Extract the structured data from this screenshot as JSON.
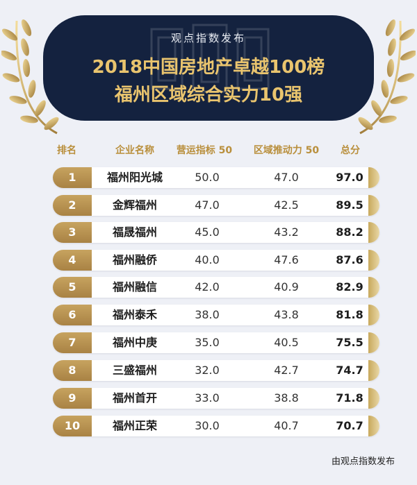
{
  "header": {
    "subtitle": "观点指数发布",
    "title_line1": "2018中国房地产卓越100榜",
    "title_line2": "福州区域综合实力10强"
  },
  "columns": {
    "rank": "排名",
    "name": "企业名称",
    "ops": "营运指标 50",
    "push": "区域推动力 50",
    "total": "总分"
  },
  "rows": [
    {
      "rank": "1",
      "name": "福州阳光城",
      "ops": "50.0",
      "push": "47.0",
      "total": "97.0"
    },
    {
      "rank": "2",
      "name": "金辉福州",
      "ops": "47.0",
      "push": "42.5",
      "total": "89.5"
    },
    {
      "rank": "3",
      "name": "福晟福州",
      "ops": "45.0",
      "push": "43.2",
      "total": "88.2"
    },
    {
      "rank": "4",
      "name": "福州融侨",
      "ops": "40.0",
      "push": "47.6",
      "total": "87.6"
    },
    {
      "rank": "5",
      "name": "福州融信",
      "ops": "42.0",
      "push": "40.9",
      "total": "82.9"
    },
    {
      "rank": "6",
      "name": "福州泰禾",
      "ops": "38.0",
      "push": "43.8",
      "total": "81.8"
    },
    {
      "rank": "7",
      "name": "福州中庚",
      "ops": "35.0",
      "push": "40.5",
      "total": "75.5"
    },
    {
      "rank": "8",
      "name": "三盛福州",
      "ops": "32.0",
      "push": "42.7",
      "total": "74.7"
    },
    {
      "rank": "9",
      "name": "福州首开",
      "ops": "33.0",
      "push": "38.8",
      "total": "71.8"
    },
    {
      "rank": "10",
      "name": "福州正荣",
      "ops": "30.0",
      "push": "40.7",
      "total": "70.7"
    }
  ],
  "footer": "由观点指数发布",
  "colors": {
    "banner": "#14223f",
    "gold": "#e9c46e",
    "header_text": "#b98f3c",
    "rank_pill": "#b48b49",
    "background": "#eef0f6"
  }
}
